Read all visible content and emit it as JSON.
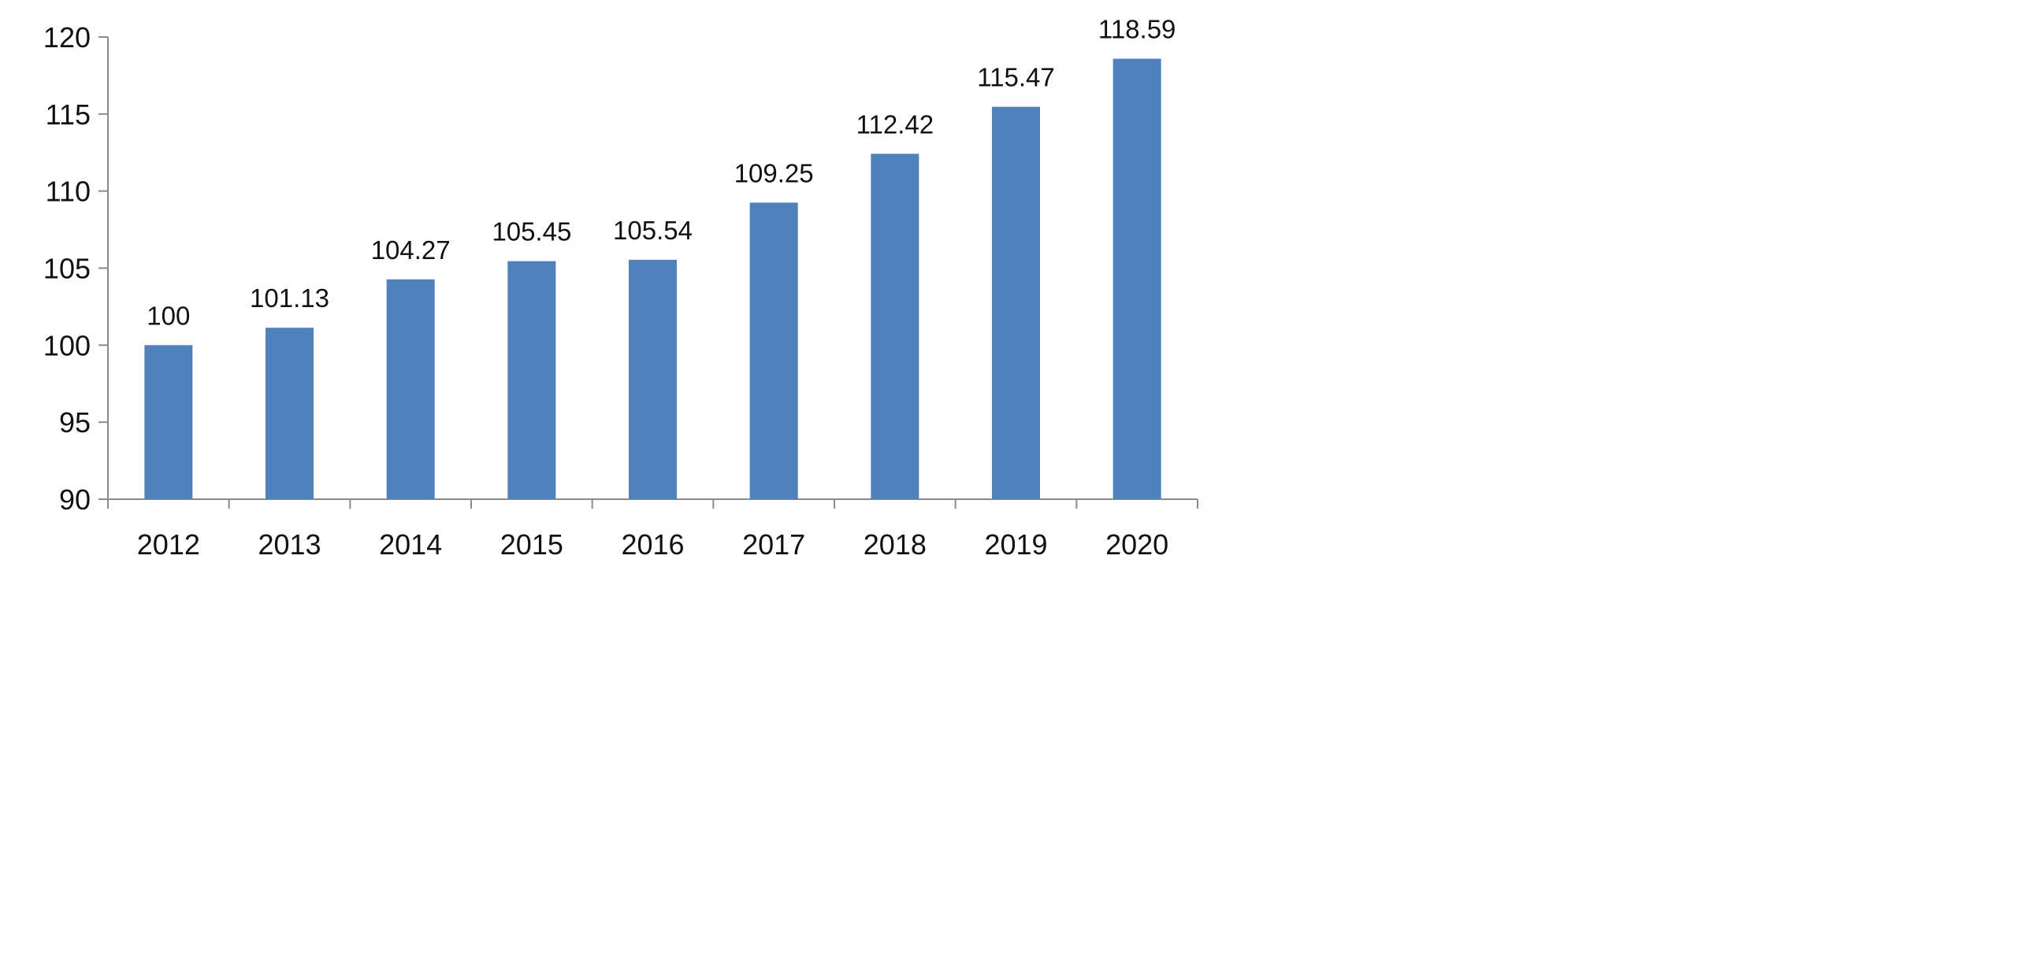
{
  "chart_data": {
    "type": "bar",
    "title": "",
    "xlabel": "",
    "ylabel": "",
    "categories": [
      "2012",
      "2013",
      "2014",
      "2015",
      "2016",
      "2017",
      "2018",
      "2019",
      "2020"
    ],
    "values": [
      100,
      101.13,
      104.27,
      105.45,
      105.54,
      109.25,
      112.42,
      115.47,
      118.59
    ],
    "data_labels": [
      "100",
      "101.13",
      "104.27",
      "105.45",
      "105.54",
      "109.25",
      "112.42",
      "115.47",
      "118.59"
    ],
    "ylim": [
      90,
      120
    ],
    "yticks": [
      90,
      95,
      100,
      105,
      110,
      115,
      120
    ],
    "ytick_labels": [
      "90",
      "95",
      "100",
      "105",
      "110",
      "115",
      "120"
    ],
    "bar_color": "#4f81bd",
    "axis_color": "#8c8c8c",
    "grid": false,
    "legend": "none"
  }
}
